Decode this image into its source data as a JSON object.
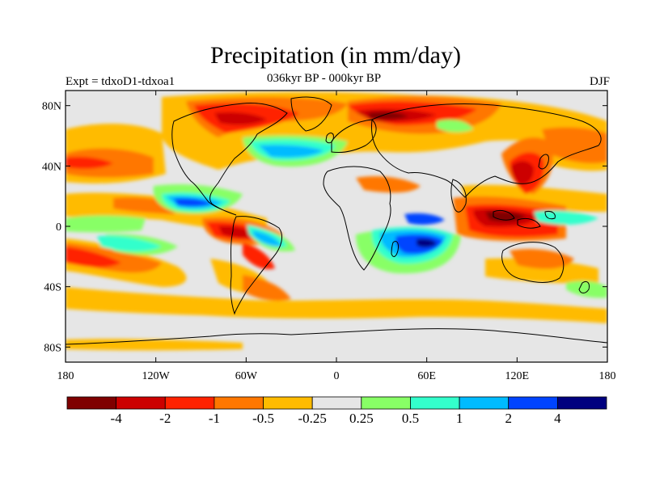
{
  "title": "Precipitation (in mm/day)",
  "left_label": "Expt = tdxoD1-tdxoa1",
  "center_label": "036kyr BP - 000kyr BP",
  "right_label": "DJF",
  "map": {
    "projection": "cylindrical equidistant",
    "lat_ticks": [
      "80N",
      "40N",
      "0",
      "40S",
      "80S"
    ],
    "lon_ticks": [
      "180",
      "120W",
      "60W",
      "0",
      "60E",
      "120E",
      "180"
    ],
    "lat_values": [
      80,
      40,
      0,
      -40,
      -80
    ],
    "lon_values": [
      -180,
      -120,
      -60,
      0,
      60,
      120,
      180
    ]
  },
  "colorbar": {
    "colors": [
      "#7f0000",
      "#cc0000",
      "#ff2200",
      "#ff7700",
      "#ffbb00",
      "#e6e6e6",
      "#88ff66",
      "#33ffcc",
      "#00bbff",
      "#0044ff",
      "#00007f"
    ],
    "labels": [
      "-4",
      "-2",
      "-1",
      "-0.5",
      "-0.25",
      "0.25",
      "0.5",
      "1",
      "2",
      "4"
    ]
  },
  "colors": {
    "land_ocean_background": "#e6e6e6",
    "coastline": "#000000"
  }
}
